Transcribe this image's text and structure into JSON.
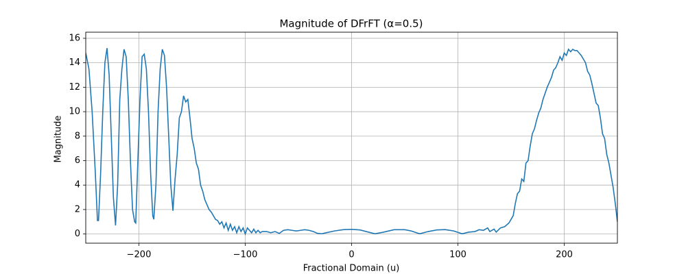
{
  "chart_data": {
    "type": "line",
    "title": "Magnitude of DFrFT (α=0.5)",
    "x_label": "Fractional Domain (u)",
    "y_label": "Magnitude",
    "xlim": [
      -250,
      250
    ],
    "ylim": [
      -0.75,
      16.5
    ],
    "xticks": [
      {
        "value": -200,
        "label": "−200"
      },
      {
        "value": -100,
        "label": "−100"
      },
      0,
      100,
      200
    ],
    "yticks": [
      0,
      2,
      4,
      6,
      8,
      10,
      12,
      14,
      16
    ],
    "grid": true,
    "series": [
      {
        "color": "#1f77b4",
        "x": [
          -250,
          -247,
          -244,
          -241,
          -239,
          -238,
          -236,
          -234,
          -232,
          -230,
          -228,
          -226,
          -224,
          -222,
          -220,
          -218,
          -216,
          -214,
          -212,
          -210,
          -208,
          -206,
          -204,
          -203,
          -201,
          -199,
          -197,
          -195,
          -193,
          -191,
          -189,
          -187,
          -186,
          -184,
          -182,
          -180,
          -178,
          -176,
          -174,
          -172,
          -170,
          -168,
          -166,
          -164,
          -162,
          -160,
          -158,
          -156,
          -154,
          -152,
          -150,
          -148,
          -146,
          -144,
          -142,
          -140,
          -138,
          -136,
          -134,
          -132,
          -130,
          -128,
          -126,
          -124,
          -122,
          -120,
          -118,
          -116,
          -114,
          -112,
          -110,
          -108,
          -106,
          -104,
          -102,
          -100,
          -98,
          -96,
          -94,
          -92,
          -90,
          -88,
          -86,
          -84,
          -80,
          -76,
          -72,
          -68,
          -64,
          -60,
          -56,
          -52,
          -48,
          -44,
          -40,
          -36,
          -32,
          -28,
          -24,
          -16,
          -8,
          0,
          8,
          16,
          22,
          30,
          40,
          50,
          56,
          64,
          72,
          80,
          88,
          96,
          104,
          110,
          116,
          120,
          124,
          128,
          130,
          134,
          136,
          140,
          144,
          148,
          150,
          152,
          154,
          156,
          158,
          160,
          162,
          164,
          166,
          168,
          170,
          172,
          174,
          176,
          178,
          180,
          182,
          184,
          186,
          188,
          190,
          192,
          194,
          196,
          198,
          200,
          202,
          204,
          206,
          208,
          210,
          212,
          214,
          216,
          218,
          220,
          222,
          224,
          226,
          228,
          230,
          232,
          234,
          236,
          238,
          240,
          242,
          244,
          246,
          248,
          250
        ],
        "values": [
          14.8,
          13.5,
          10,
          5,
          1.1,
          1.1,
          5,
          10,
          14,
          15.2,
          13,
          8,
          3,
          0.7,
          4,
          11,
          13.5,
          15.1,
          14.5,
          11,
          6,
          2,
          1,
          0.9,
          6,
          11,
          14.5,
          14.7,
          13.5,
          10,
          5,
          1.5,
          1.2,
          4,
          10,
          13.5,
          15.1,
          14.6,
          12,
          8,
          4,
          1.9,
          4.5,
          6.5,
          9.5,
          10,
          11.3,
          10.8,
          11,
          9.5,
          7.8,
          7,
          5.8,
          5.3,
          4,
          3.5,
          2.8,
          2.4,
          2,
          1.8,
          1.5,
          1.2,
          1.1,
          0.8,
          1,
          0.5,
          0.9,
          0.3,
          0.8,
          0.3,
          0.6,
          0.1,
          0.6,
          0.2,
          0.5,
          0,
          0.5,
          0.3,
          0.1,
          0.4,
          0.1,
          0.3,
          0.1,
          0.2,
          0.2,
          0.1,
          0.2,
          0.05,
          0.3,
          0.35,
          0.3,
          0.25,
          0.3,
          0.35,
          0.3,
          0.2,
          0.05,
          0.02,
          0.1,
          0.25,
          0.35,
          0.38,
          0.33,
          0.15,
          0.02,
          0.15,
          0.35,
          0.35,
          0.25,
          0.02,
          0.2,
          0.33,
          0.36,
          0.25,
          0.02,
          0.15,
          0.2,
          0.35,
          0.3,
          0.5,
          0.2,
          0.4,
          0.15,
          0.5,
          0.6,
          0.9,
          1.2,
          1.5,
          2.5,
          3.3,
          3.5,
          4.5,
          4.3,
          5.8,
          6,
          7.2,
          8.2,
          8.6,
          9.3,
          9.9,
          10.3,
          11,
          11.5,
          12,
          12.4,
          12.8,
          13.4,
          13.6,
          14,
          14.5,
          14.2,
          14.8,
          14.6,
          15.1,
          14.9,
          15.1,
          15,
          15,
          14.8,
          14.6,
          14.3,
          14,
          13.3,
          13,
          12.3,
          11.5,
          10.7,
          10.5,
          9.5,
          8.2,
          7.8,
          6.5,
          5.8,
          4.8,
          3.8,
          2.5,
          1
        ]
      }
    ]
  }
}
